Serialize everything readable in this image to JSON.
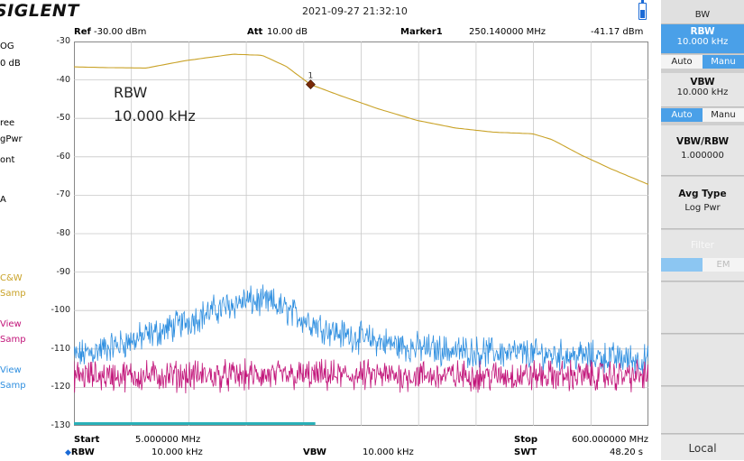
{
  "header": {
    "logo": "SIGLENT",
    "datetime": "2021-09-27  21:32:10"
  },
  "info": {
    "ref_label": "Ref",
    "ref_value": "-30.00 dBm",
    "att_label": "Att",
    "att_value": "10.00 dB",
    "marker_label": "Marker1",
    "marker_freq": "250.140000 MHz",
    "marker_level": "-41.17 dBm"
  },
  "left_column": {
    "scale": "OG",
    "scale_div": "0 dB",
    "trig": "ree",
    "avg": "gPwr",
    "cont": "ont",
    "misc": "A",
    "trace1_mode": "C&W",
    "trace1_det": "Samp",
    "trace2_mode": "View",
    "trace2_det": "Samp",
    "trace3_mode": "View",
    "trace3_det": "Samp"
  },
  "annotation": {
    "line1": "RBW",
    "line2": "10.000 kHz"
  },
  "marker": {
    "number": "1"
  },
  "y_ticks": [
    "-30",
    "-40",
    "-50",
    "-60",
    "-70",
    "-80",
    "-90",
    "-100",
    "-110",
    "-120",
    "-130"
  ],
  "footer": {
    "start_label": "Start",
    "start_value": "5.000000 MHz",
    "stop_label": "Stop",
    "stop_value": "600.000000 MHz",
    "rbw_label": "RBW",
    "rbw_value": "10.000 kHz",
    "vbw_label": "VBW",
    "vbw_value": "10.000 kHz",
    "swt_label": "SWT",
    "swt_value": "48.20 s"
  },
  "panel": {
    "title": "BW",
    "rbw_title": "RBW",
    "rbw_value": "10.000 kHz",
    "rbw_auto": "Auto",
    "rbw_manual": "Manu",
    "vbw_title": "VBW",
    "vbw_value": "10.000 kHz",
    "vbw_auto": "Auto",
    "vbw_manual": "Manu",
    "ratio_title": "VBW/RBW",
    "ratio_value": "1.000000",
    "avg_title": "Avg Type",
    "avg_value": "Log Pwr",
    "filter_title": "Filter",
    "filter_off": "EM",
    "local": "Local"
  },
  "colors": {
    "trace1": "#c9a227",
    "trace2": "#c2157a",
    "trace3": "#2f8fe0",
    "grid": "#c8c8c8",
    "accent": "#4aa0e8",
    "span_bar": "#29b0b8"
  },
  "chart_data": {
    "type": "line",
    "x_unit": "MHz",
    "xlim": [
      5,
      600
    ],
    "ylim": [
      -130,
      -30
    ],
    "y_unit": "dBm",
    "grid": true,
    "series": [
      {
        "trace": "1",
        "mode": "C&W",
        "x": [
          5,
          40,
          80,
          120,
          170,
          200,
          225,
          250,
          280,
          320,
          360,
          400,
          440,
          460,
          480,
          500,
          530,
          560,
          600
        ],
        "y": [
          -36.6,
          -36.8,
          -36.9,
          -35.0,
          -33.3,
          -33.6,
          -36.5,
          -41.2,
          -44.0,
          -47.5,
          -50.5,
          -52.5,
          -53.6,
          -53.8,
          -54.0,
          -55.5,
          -59.5,
          -63.0,
          -67.2
        ]
      },
      {
        "trace": "2",
        "mode": "View",
        "x": [
          5,
          100,
          200,
          300,
          400,
          500,
          600
        ],
        "y": [
          -117,
          -117,
          -117,
          -117,
          -117,
          -117,
          -117
        ]
      },
      {
        "trace": "3",
        "mode": "View",
        "x": [
          5,
          50,
          100,
          150,
          180,
          210,
          250,
          280,
          300,
          350,
          400,
          450,
          500,
          550,
          600
        ],
        "y": [
          -112,
          -109,
          -105,
          -100,
          -97.5,
          -98,
          -103,
          -106,
          -107,
          -109.5,
          -110.5,
          -111,
          -111.5,
          -112,
          -113
        ]
      }
    ],
    "marker": {
      "x": 250.14,
      "y": -41.17
    }
  }
}
